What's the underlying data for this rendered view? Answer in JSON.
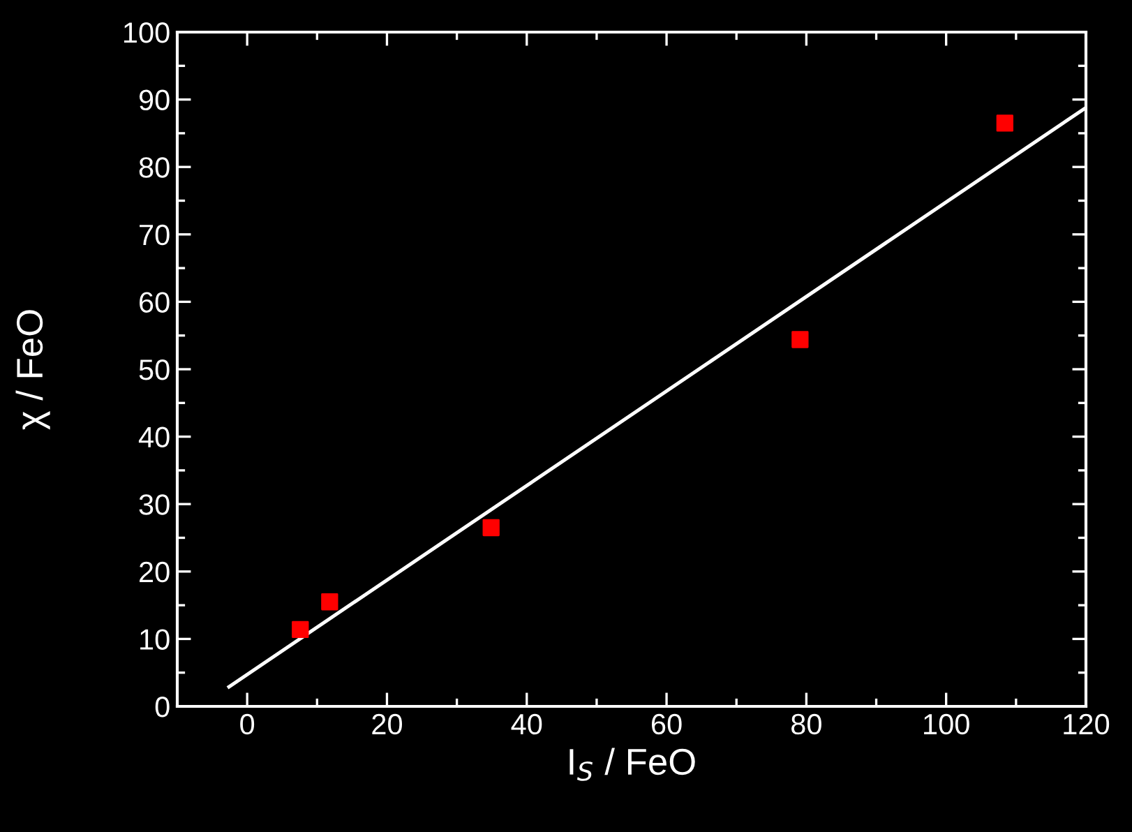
{
  "chart_data": {
    "type": "scatter",
    "xlabel": "I$_{S}$ / FeO",
    "ylabel": "χ / FeO",
    "xlim": [
      -10,
      120
    ],
    "xticks": [
      0,
      20,
      40,
      60,
      80,
      100,
      120
    ],
    "ylim": [
      0,
      100
    ],
    "yticks": [
      0,
      10,
      20,
      30,
      40,
      50,
      60,
      70,
      80,
      90,
      100
    ],
    "series": [
      {
        "color": "#ff0000",
        "marker": "square",
        "x": [
          7.6,
          11.8,
          34.9,
          79.1,
          108.4
        ],
        "values": [
          11.4,
          15.5,
          26.5,
          54.4,
          86.5
        ]
      },
      {
        "type": "line",
        "color": "#ffffff",
        "line_style": "solid",
        "x": [
          -2.6,
          120
        ],
        "values": [
          2.9,
          88.8
        ]
      }
    ]
  }
}
